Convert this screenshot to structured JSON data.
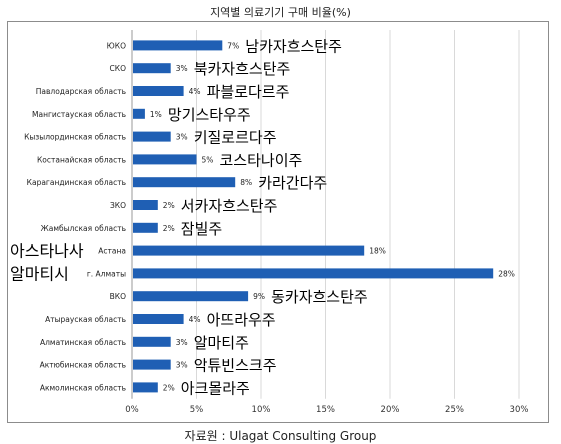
{
  "figure": {
    "title": "지역별 의료기기 구매 비율(%)",
    "source": "자료원 :  Ulagat Consulting Group"
  },
  "chart_data": {
    "type": "bar",
    "orientation": "horizontal",
    "title": "지역별 의료기기 구매 비율(%)",
    "xlabel": "",
    "ylabel": "",
    "xlim": [
      0,
      30
    ],
    "x_ticks": [
      "0%",
      "5%",
      "10%",
      "15%",
      "20%",
      "25%",
      "30%"
    ],
    "grid": "vertical",
    "bar_color": "#1f5fb4",
    "categories": [
      "ЮКО",
      "СКО",
      "Павлодарская область",
      "Мангистауская область",
      "Кызылординская область",
      "Костанайская область",
      "Карагандинская область",
      "ЗКО",
      "Жамбылская область",
      "Астана",
      "г. Алматы",
      "ВКО",
      "Атырауская область",
      "Алматинская область",
      "Актюбинская область",
      "Акмолинская область"
    ],
    "korean_labels": [
      "남카자흐스탄주",
      "북카자흐스탄주",
      "파블로다르주",
      "망기스타우주",
      "키질로르다주",
      "코스타나이주",
      "카라간다주",
      "서카자흐스탄주",
      "잠빌주",
      "아스타나사",
      "알마티시",
      "동카자흐스탄주",
      "아뜨라우주",
      "알마티주",
      "악튜빈스크주",
      "아크몰라주"
    ],
    "values": [
      7,
      3,
      4,
      1,
      3,
      5,
      8,
      2,
      2,
      18,
      28,
      9,
      4,
      3,
      3,
      2
    ],
    "value_labels": [
      "7%",
      "3%",
      "4%",
      "1%",
      "3%",
      "5%",
      "8%",
      "2%",
      "2%",
      "18%",
      "28%",
      "9%",
      "4%",
      "3%",
      "3%",
      "2%"
    ]
  }
}
